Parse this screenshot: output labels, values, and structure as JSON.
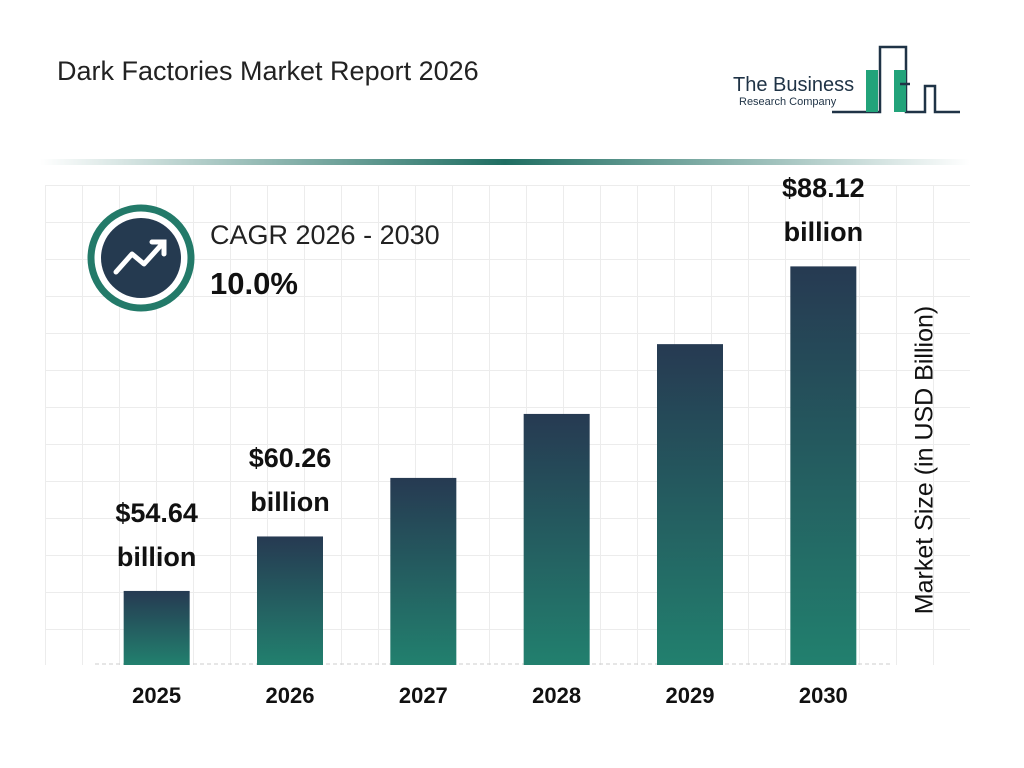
{
  "title": "Dark Factories Market Report 2026",
  "logo": {
    "line1": "The Business",
    "line2": "Research Company"
  },
  "chart_data": {
    "type": "bar",
    "categories": [
      "2025",
      "2026",
      "2027",
      "2028",
      "2029",
      "2030"
    ],
    "values": [
      54.64,
      60.26,
      66.3,
      72.9,
      80.1,
      88.12
    ],
    "value_labels": [
      "$54.64 billion",
      "$60.26 billion",
      null,
      null,
      null,
      "$88.12 billion"
    ],
    "gradient": [
      "#263a52",
      "#22806e"
    ],
    "ylim": [
      47,
      96
    ],
    "y_label": "Market Size (in USD Billion)",
    "annotations": {
      "cagr_label": "CAGR 2026 - 2030",
      "cagr_value": "10.0%"
    }
  }
}
